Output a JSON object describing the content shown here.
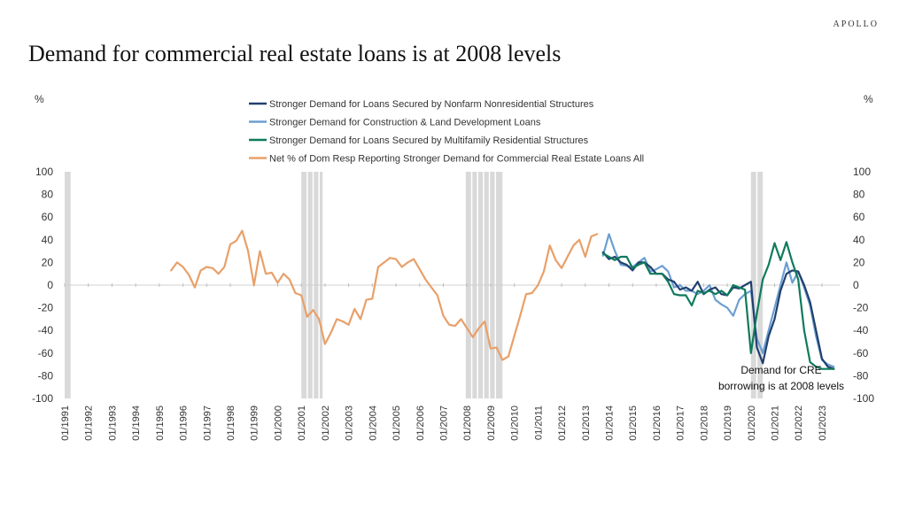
{
  "brand": "APOLLO",
  "title": "Demand for commercial real estate loans is at 2008 levels",
  "chart_data": {
    "type": "line",
    "title": "Demand for commercial real estate loans is at 2008 levels",
    "ylabel_left": "%",
    "ylabel_right": "%",
    "ylim": [
      -100,
      100
    ],
    "y_ticks": [
      100,
      80,
      60,
      40,
      20,
      0,
      -20,
      -40,
      -60,
      -80,
      -100
    ],
    "xlim": [
      1991.0,
      2023.75
    ],
    "x_tick_labels": [
      "01/1991",
      "01/1992",
      "01/1993",
      "01/1994",
      "01/1995",
      "01/1996",
      "01/1997",
      "01/1998",
      "01/1999",
      "01/2000",
      "01/2001",
      "01/2002",
      "01/2003",
      "01/2004",
      "01/2005",
      "01/2006",
      "01/2007",
      "01/2008",
      "01/2009",
      "01/2010",
      "01/2011",
      "01/2012",
      "01/2013",
      "01/2014",
      "01/2015",
      "01/2016",
      "01/2017",
      "01/2018",
      "01/2019",
      "01/2020",
      "01/2021",
      "01/2022",
      "01/2023"
    ],
    "x_tick_years": [
      1991,
      1992,
      1993,
      1994,
      1995,
      1996,
      1997,
      1998,
      1999,
      2000,
      2001,
      2002,
      2003,
      2004,
      2005,
      2006,
      2007,
      2008,
      2009,
      2010,
      2011,
      2012,
      2013,
      2014,
      2015,
      2016,
      2017,
      2018,
      2019,
      2020,
      2021,
      2022,
      2023
    ],
    "recessions": [
      [
        1991.0,
        1991.25
      ],
      [
        2001.0,
        2001.9
      ],
      [
        2007.95,
        2009.5
      ],
      [
        2020.0,
        2020.5
      ]
    ],
    "grid": false,
    "legend_position": "top-center",
    "series": [
      {
        "name": "Stronger Demand for Loans Secured by Nonfarm Nonresidential Structures",
        "color": "#22406e",
        "x": [
          2013.75,
          2014.0,
          2014.25,
          2014.5,
          2014.75,
          2015.0,
          2015.25,
          2015.5,
          2015.75,
          2016.0,
          2016.25,
          2016.5,
          2016.75,
          2017.0,
          2017.25,
          2017.5,
          2017.75,
          2018.0,
          2018.25,
          2018.5,
          2018.75,
          2019.0,
          2019.25,
          2019.5,
          2019.75,
          2020.0,
          2020.25,
          2020.5,
          2020.75,
          2021.0,
          2021.25,
          2021.5,
          2021.75,
          2022.0,
          2022.25,
          2022.5,
          2022.75,
          2023.0,
          2023.25,
          2023.5
        ],
        "values": [
          29,
          23,
          25,
          20,
          18,
          13,
          20,
          20,
          16,
          10,
          10,
          5,
          3,
          -4,
          -2,
          -5,
          3,
          -8,
          -4,
          -2,
          -8,
          -9,
          -2,
          -3,
          0,
          3,
          -55,
          -69,
          -45,
          -30,
          -5,
          10,
          13,
          12,
          0,
          -15,
          -40,
          -65,
          -72,
          -74
        ]
      },
      {
        "name": "Stronger Demand for Construction & Land Development Loans",
        "color": "#6b9fd1",
        "x": [
          2013.75,
          2014.0,
          2014.25,
          2014.5,
          2014.75,
          2015.0,
          2015.25,
          2015.5,
          2015.75,
          2016.0,
          2016.25,
          2016.5,
          2016.75,
          2017.0,
          2017.25,
          2017.5,
          2017.75,
          2018.0,
          2018.25,
          2018.5,
          2018.75,
          2019.0,
          2019.25,
          2019.5,
          2019.75,
          2020.0,
          2020.25,
          2020.5,
          2020.75,
          2021.0,
          2021.25,
          2021.5,
          2021.75,
          2022.0,
          2022.25,
          2022.5,
          2022.75,
          2023.0,
          2023.25,
          2023.5
        ],
        "values": [
          26,
          45,
          30,
          18,
          17,
          16,
          20,
          24,
          12,
          14,
          17,
          12,
          -2,
          0,
          -5,
          -5,
          -8,
          -5,
          0,
          -13,
          -17,
          -20,
          -27,
          -13,
          -8,
          -5,
          -47,
          -60,
          -40,
          -20,
          0,
          20,
          2,
          12,
          -2,
          -18,
          -45,
          -66,
          -70,
          -72
        ]
      },
      {
        "name": "Stronger Demand for Loans Secured by Multifamily Residential Structures",
        "color": "#0f7a5c",
        "x": [
          2013.75,
          2014.0,
          2014.25,
          2014.5,
          2014.75,
          2015.0,
          2015.25,
          2015.5,
          2015.75,
          2016.0,
          2016.25,
          2016.5,
          2016.75,
          2017.0,
          2017.25,
          2017.5,
          2017.75,
          2018.0,
          2018.25,
          2018.5,
          2018.75,
          2019.0,
          2019.25,
          2019.5,
          2019.75,
          2020.0,
          2020.25,
          2020.5,
          2020.75,
          2021.0,
          2021.25,
          2021.5,
          2021.75,
          2022.0,
          2022.25,
          2022.5,
          2022.75,
          2023.0,
          2023.25,
          2023.5
        ],
        "values": [
          28,
          25,
          22,
          25,
          25,
          15,
          18,
          20,
          10,
          10,
          10,
          3,
          -8,
          -9,
          -9,
          -18,
          -5,
          -7,
          -5,
          -8,
          -5,
          -9,
          0,
          -2,
          -4,
          -60,
          -25,
          5,
          18,
          37,
          22,
          38,
          20,
          5,
          -40,
          -68,
          -72,
          -74,
          -74,
          -74
        ]
      },
      {
        "name": "Net % of Dom Resp Reporting Stronger Demand for Commercial Real Estate Loans All",
        "color": "#e8a06a",
        "x": [
          1995.5,
          1995.75,
          1996.0,
          1996.25,
          1996.5,
          1996.75,
          1997.0,
          1997.25,
          1997.5,
          1997.75,
          1998.0,
          1998.25,
          1998.5,
          1998.75,
          1999.0,
          1999.25,
          1999.5,
          1999.75,
          2000.0,
          2000.25,
          2000.5,
          2000.75,
          2001.0,
          2001.25,
          2001.5,
          2001.75,
          2002.0,
          2002.25,
          2002.5,
          2002.75,
          2003.0,
          2003.25,
          2003.5,
          2003.75,
          2004.0,
          2004.25,
          2004.5,
          2004.75,
          2005.0,
          2005.25,
          2005.5,
          2005.75,
          2006.0,
          2006.25,
          2006.5,
          2006.75,
          2007.0,
          2007.25,
          2007.5,
          2007.75,
          2008.0,
          2008.25,
          2008.5,
          2008.75,
          2009.0,
          2009.25,
          2009.5,
          2009.75,
          2010.0,
          2010.25,
          2010.5,
          2010.75,
          2011.0,
          2011.25,
          2011.5,
          2011.75,
          2012.0,
          2012.25,
          2012.5,
          2012.75,
          2013.0,
          2013.25,
          2013.5
        ],
        "values": [
          13,
          20,
          16,
          9,
          -2,
          13,
          16,
          15,
          10,
          16,
          36,
          39,
          48,
          30,
          0,
          30,
          10,
          11,
          2,
          10,
          5,
          -7,
          -9,
          -28,
          -22,
          -30,
          -52,
          -42,
          -30,
          -32,
          -35,
          -21,
          -30,
          -13,
          -12,
          16,
          20,
          24,
          23,
          16,
          20,
          23,
          14,
          5,
          -2,
          -9,
          -27,
          -35,
          -36,
          -30,
          -38,
          -46,
          -38,
          -32,
          -56,
          -55,
          -66,
          -63,
          -45,
          -27,
          -8,
          -7,
          0,
          12,
          35,
          22,
          15,
          25,
          35,
          40,
          25,
          43,
          45
        ]
      }
    ],
    "annotation": {
      "line1": "Demand for CRE",
      "line2": "borrowing is at 2008 levels"
    }
  }
}
